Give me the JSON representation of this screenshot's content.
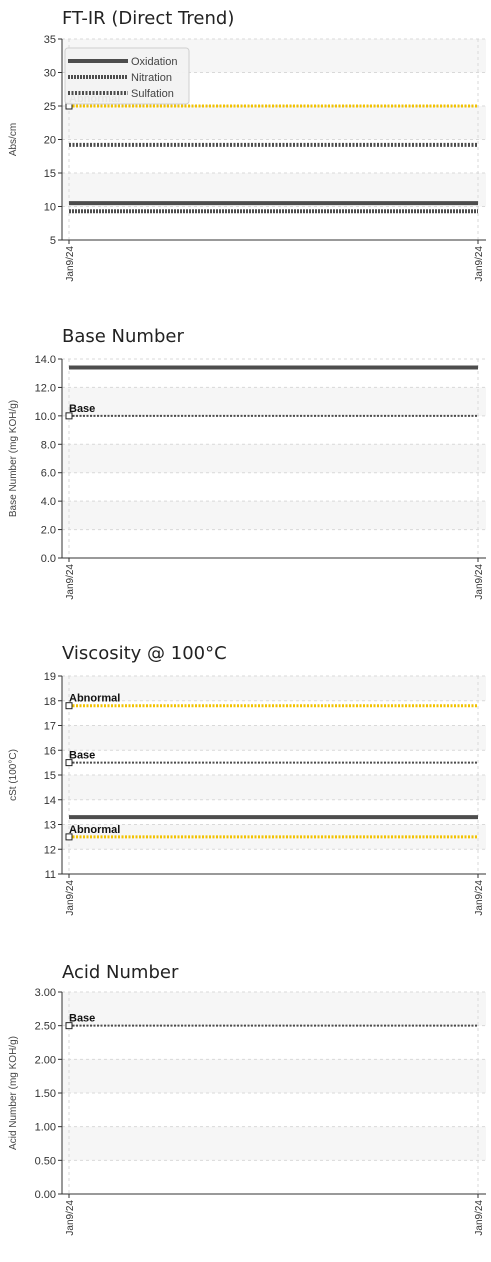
{
  "chart_data": [
    {
      "type": "line",
      "title": "FT-IR (Direct Trend)",
      "ylabel": "Abs/cm",
      "xlabel": "",
      "ylim": [
        5,
        35
      ],
      "yticks": [
        "5",
        "10",
        "15",
        "20",
        "25",
        "30",
        "35"
      ],
      "x_tick_labels": [
        "Jan9/24",
        "Jan9/24"
      ],
      "grid": true,
      "legend": "top-left",
      "series": [
        {
          "name": "Oxidation",
          "style": "solid",
          "color": "#4d4d4d",
          "values": [
            10.5,
            10.5
          ]
        },
        {
          "name": "Nitration",
          "style": "dense-dotted",
          "color": "#4d4d4d",
          "values": [
            9.3,
            9.3
          ]
        },
        {
          "name": "Sulfation",
          "style": "dotted",
          "color": "#4d4d4d",
          "values": [
            19.2,
            19.2
          ]
        }
      ],
      "limits": [
        {
          "label": "Abnormal",
          "value": 25,
          "color": "#f2c200"
        }
      ]
    },
    {
      "type": "line",
      "title": "Base Number",
      "ylabel": "Base Number (mg KOH/g)",
      "xlabel": "",
      "ylim": [
        0,
        14
      ],
      "yticks": [
        "0.0",
        "2.0",
        "4.0",
        "6.0",
        "8.0",
        "10.0",
        "12.0",
        "14.0"
      ],
      "x_tick_labels": [
        "Jan9/24",
        "Jan9/24"
      ],
      "grid": true,
      "series": [
        {
          "style": "solid",
          "color": "#4d4d4d",
          "values": [
            13.4,
            13.4
          ]
        }
      ],
      "limits": [
        {
          "label": "Base",
          "value": 10,
          "color": "#4d4d4d"
        }
      ]
    },
    {
      "type": "line",
      "title": "Viscosity @ 100°C",
      "ylabel": "cSt (100°C)",
      "xlabel": "",
      "ylim": [
        11,
        19
      ],
      "yticks": [
        "11",
        "12",
        "13",
        "14",
        "15",
        "16",
        "17",
        "18",
        "19"
      ],
      "x_tick_labels": [
        "Jan9/24",
        "Jan9/24"
      ],
      "grid": true,
      "series": [
        {
          "style": "solid",
          "color": "#4d4d4d",
          "values": [
            13.3,
            13.3
          ]
        }
      ],
      "limits": [
        {
          "label": "Abnormal",
          "value": 17.8,
          "color": "#f2c200"
        },
        {
          "label": "Base",
          "value": 15.5,
          "color": "#4d4d4d"
        },
        {
          "label": "Abnormal",
          "value": 12.5,
          "color": "#f2c200"
        }
      ]
    },
    {
      "type": "line",
      "title": "Acid Number",
      "ylabel": "Acid Number (mg KOH/g)",
      "xlabel": "",
      "ylim": [
        0,
        3
      ],
      "yticks": [
        "0.00",
        "0.50",
        "1.00",
        "1.50",
        "2.00",
        "2.50",
        "3.00"
      ],
      "x_tick_labels": [
        "Jan9/24",
        "Jan9/24"
      ],
      "grid": true,
      "series": [],
      "limits": [
        {
          "label": "Base",
          "value": 2.5,
          "color": "#4d4d4d"
        }
      ]
    }
  ]
}
